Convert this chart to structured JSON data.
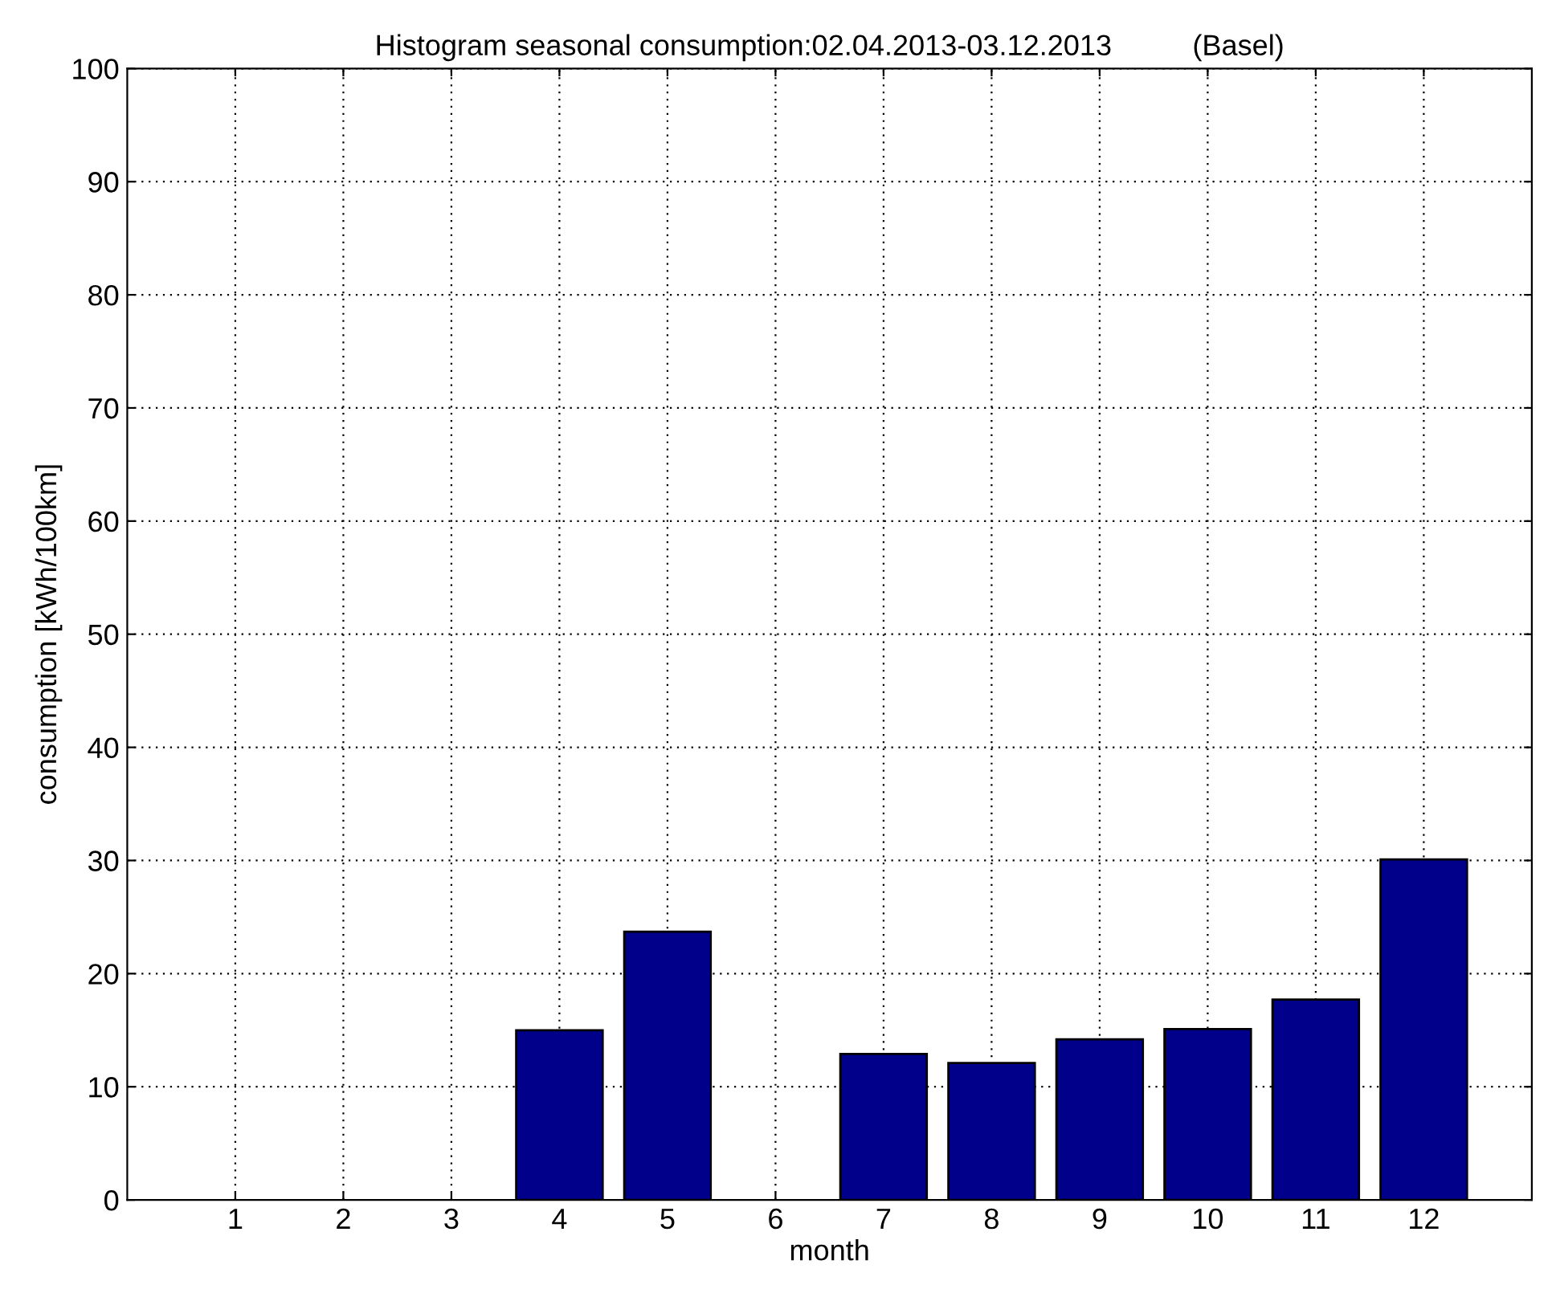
{
  "chart_data": {
    "type": "bar",
    "title": "Histogram seasonal consumption:02.04.2013-03.12.2013          (Basel)",
    "xlabel": "month",
    "ylabel": "consumption [kWh/100km]",
    "categories": [
      "1",
      "2",
      "3",
      "4",
      "5",
      "6",
      "7",
      "8",
      "9",
      "10",
      "11",
      "12"
    ],
    "values": [
      null,
      null,
      null,
      15.0,
      23.7,
      null,
      12.9,
      12.1,
      14.2,
      15.1,
      17.7,
      30.1
    ],
    "color": "#00008b",
    "ylim": [
      0,
      100
    ],
    "yticks": [
      0,
      10,
      20,
      30,
      40,
      50,
      60,
      70,
      80,
      90,
      100
    ],
    "grid": true
  }
}
